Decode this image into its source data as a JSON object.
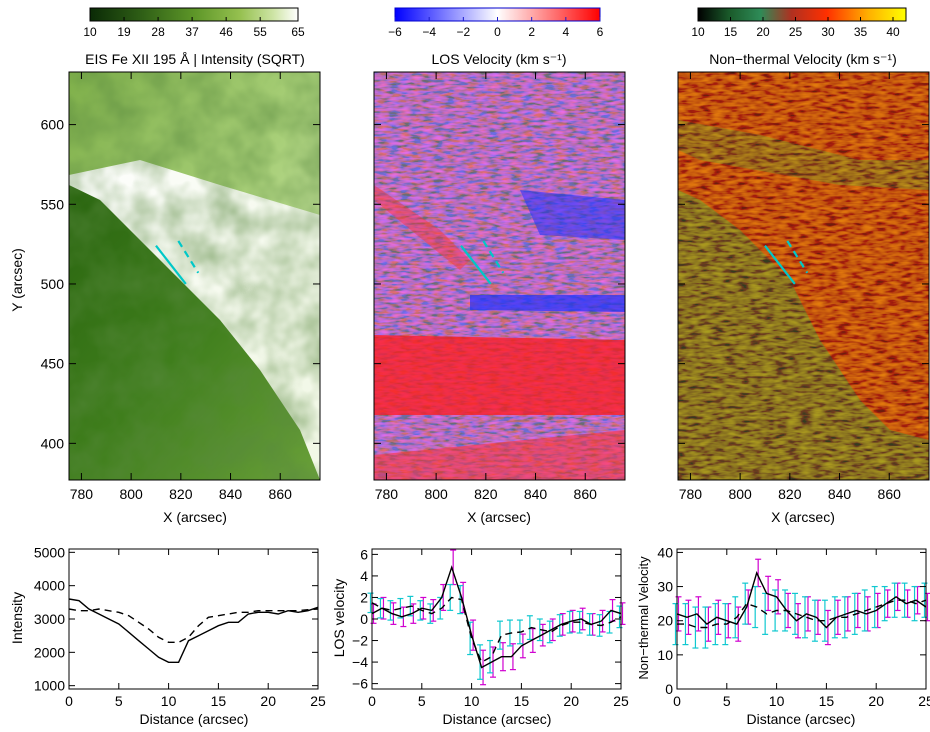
{
  "colors": {
    "intensity_cmap": [
      "#0a2a06",
      "#2f5f16",
      "#5d9628",
      "#95c04f",
      "#cde4a4",
      "#ffffff"
    ],
    "velocity_cmap": [
      "#0000ff",
      "#ffffff",
      "#ff0000"
    ],
    "nonthermal_cmap": [
      "#000000",
      "#1a5a2a",
      "#2e8b57",
      "#b03020",
      "#ff3000",
      "#ffb000",
      "#ffff00"
    ],
    "cut_line": "#00c8c8",
    "error_magenta": "#d000d0",
    "error_cyan": "#10c8d0"
  },
  "chart_data": [
    {
      "type": "heatmap",
      "title": "EIS Fe XII 195 Å  |  Intensity (SQRT)",
      "xlabel": "X (arcsec)",
      "ylabel": "Y (arcsec)",
      "xlim": [
        775,
        876
      ],
      "ylim": [
        377,
        633
      ],
      "xticks": [
        "780",
        "800",
        "820",
        "840",
        "860"
      ],
      "yticks": [
        "400",
        "450",
        "500",
        "550",
        "600"
      ],
      "colorbar": {
        "ticks": [
          "10",
          "19",
          "28",
          "37",
          "46",
          "55",
          "65"
        ],
        "range": [
          10,
          65
        ]
      },
      "slits": [
        {
          "x1": 810,
          "y1": 524,
          "x2": 822,
          "y2": 500
        },
        {
          "x1": 819,
          "y1": 527,
          "x2": 827,
          "y2": 507
        }
      ]
    },
    {
      "type": "heatmap",
      "title": "LOS Velocity (km s⁻¹)",
      "xlabel": "X (arcsec)",
      "xlim": [
        775,
        876
      ],
      "ylim": [
        377,
        633
      ],
      "xticks": [
        "780",
        "800",
        "820",
        "840",
        "860"
      ],
      "colorbar": {
        "ticks": [
          "−6",
          "−4",
          "−2",
          "0",
          "2",
          "4",
          "6"
        ],
        "range": [
          -6,
          6
        ]
      },
      "slits": [
        {
          "x1": 810,
          "y1": 524,
          "x2": 822,
          "y2": 500
        },
        {
          "x1": 819,
          "y1": 527,
          "x2": 827,
          "y2": 507
        }
      ]
    },
    {
      "type": "heatmap",
      "title": "Non−thermal Velocity (km s⁻¹)",
      "xlabel": "X (arcsec)",
      "xlim": [
        775,
        876
      ],
      "ylim": [
        377,
        633
      ],
      "xticks": [
        "780",
        "800",
        "820",
        "840",
        "860"
      ],
      "colorbar": {
        "ticks": [
          "10",
          "15",
          "20",
          "25",
          "30",
          "35",
          "40"
        ],
        "range": [
          10,
          42
        ]
      },
      "slits": [
        {
          "x1": 810,
          "y1": 524,
          "x2": 822,
          "y2": 500
        },
        {
          "x1": 819,
          "y1": 527,
          "x2": 827,
          "y2": 507
        }
      ]
    },
    {
      "type": "line",
      "xlabel": "Distance (arcsec)",
      "ylabel": "Intensity",
      "xlim": [
        0,
        25
      ],
      "ylim": [
        900,
        5100
      ],
      "xticks": [
        "0",
        "5",
        "10",
        "15",
        "20",
        "25"
      ],
      "yticks": [
        "1000",
        "2000",
        "3000",
        "4000",
        "5000"
      ],
      "series": [
        {
          "style": "solid",
          "x": [
            0,
            1,
            2,
            3,
            4,
            5,
            6,
            7,
            8,
            9,
            10,
            11,
            12,
            13,
            14,
            15,
            16,
            17,
            18,
            19,
            20,
            21,
            22,
            23,
            24,
            25
          ],
          "values": [
            3600,
            3550,
            3300,
            3150,
            3000,
            2850,
            2600,
            2350,
            2100,
            1850,
            1700,
            1700,
            2350,
            2500,
            2650,
            2800,
            2900,
            2900,
            3150,
            3200,
            3200,
            3150,
            3250,
            3200,
            3250,
            3350
          ]
        },
        {
          "style": "dashed",
          "x": [
            0,
            1,
            2,
            3,
            4,
            5,
            6,
            7,
            8,
            9,
            10,
            11,
            12,
            13,
            14,
            15,
            16,
            17,
            18,
            19,
            20,
            21,
            22,
            23,
            24,
            25
          ],
          "values": [
            3300,
            3250,
            3250,
            3300,
            3250,
            3200,
            3100,
            2900,
            2700,
            2450,
            2300,
            2300,
            2450,
            2800,
            3050,
            3100,
            3150,
            3200,
            3200,
            3250,
            3250,
            3250,
            3250,
            3250,
            3280,
            3300
          ]
        }
      ]
    },
    {
      "type": "line",
      "xlabel": "Distance (arcsec)",
      "ylabel": "LOS velocity",
      "xlim": [
        0,
        25
      ],
      "ylim": [
        -6.5,
        6.5
      ],
      "xticks": [
        "0",
        "5",
        "10",
        "15",
        "20",
        "25"
      ],
      "yticks": [
        "−6",
        "−4",
        "−2",
        "0",
        "2",
        "4",
        "6"
      ],
      "series": [
        {
          "style": "solid",
          "error_color": "magenta",
          "x": [
            0,
            1,
            2,
            3,
            4,
            5,
            6,
            7,
            8,
            9,
            10,
            11,
            12,
            13,
            14,
            15,
            16,
            17,
            18,
            19,
            20,
            21,
            22,
            23,
            24,
            25
          ],
          "values": [
            0.5,
            1.0,
            0.5,
            0.2,
            0.5,
            1.0,
            0.8,
            2.0,
            4.8,
            2.0,
            -1.5,
            -4.5,
            -4.0,
            -3.5,
            -3.5,
            -2.5,
            -2.0,
            -1.5,
            -1.0,
            -0.5,
            -0.2,
            0.0,
            -0.5,
            -0.2,
            0.8,
            0.5
          ],
          "errors": [
            0.9,
            1.0,
            1.0,
            0.9,
            0.9,
            1.0,
            1.0,
            1.2,
            1.6,
            1.4,
            1.4,
            1.6,
            1.4,
            1.3,
            1.2,
            1.1,
            1.1,
            1.0,
            1.0,
            1.0,
            1.0,
            1.0,
            1.0,
            1.0,
            1.0,
            1.0
          ]
        },
        {
          "style": "dashed",
          "error_color": "cyan",
          "x": [
            0,
            1,
            2,
            3,
            4,
            5,
            6,
            7,
            8,
            9,
            10,
            11,
            12,
            13,
            14,
            15,
            16,
            17,
            18,
            19,
            20,
            21,
            22,
            23,
            24,
            25
          ],
          "values": [
            1.5,
            1.0,
            0.8,
            1.0,
            1.2,
            0.8,
            0.5,
            1.0,
            2.0,
            1.8,
            -1.8,
            -4.0,
            -3.5,
            -1.5,
            -1.3,
            -1.2,
            -0.8,
            -1.0,
            -1.2,
            -0.6,
            -0.3,
            -0.3,
            -0.5,
            -0.6,
            -0.3,
            0.2
          ],
          "errors": [
            0.9,
            0.9,
            0.9,
            0.9,
            0.9,
            0.9,
            0.9,
            1.0,
            1.2,
            1.3,
            1.5,
            1.6,
            1.5,
            1.3,
            1.2,
            1.1,
            1.1,
            1.0,
            1.0,
            1.0,
            1.0,
            1.0,
            1.0,
            1.0,
            1.0,
            1.0
          ]
        }
      ]
    },
    {
      "type": "line",
      "xlabel": "Distance (arcsec)",
      "ylabel": "Non−thermal Velocity",
      "xlim": [
        0,
        25
      ],
      "ylim": [
        0,
        41
      ],
      "xticks": [
        "0",
        "5",
        "10",
        "15",
        "20",
        "25"
      ],
      "yticks": [
        "0",
        "10",
        "20",
        "30",
        "40"
      ],
      "series": [
        {
          "style": "solid",
          "error_color": "magenta",
          "x": [
            0,
            1,
            2,
            3,
            4,
            5,
            6,
            7,
            8,
            9,
            10,
            11,
            12,
            13,
            14,
            15,
            16,
            17,
            18,
            19,
            20,
            21,
            22,
            23,
            24,
            25
          ],
          "values": [
            22,
            21,
            22,
            19,
            21,
            20,
            19,
            24,
            34,
            28,
            27,
            23,
            20,
            22,
            21,
            18,
            21,
            22,
            23,
            22,
            23,
            25,
            27,
            25,
            26,
            24
          ],
          "errors": [
            5,
            5,
            5,
            5,
            5,
            5,
            5,
            5,
            4,
            5,
            5,
            5,
            5,
            5,
            5,
            5,
            5,
            5,
            5,
            5,
            5,
            4,
            4,
            4,
            4,
            4
          ]
        },
        {
          "style": "dashed",
          "error_color": "cyan",
          "x": [
            0,
            1,
            2,
            3,
            4,
            5,
            6,
            7,
            8,
            9,
            10,
            11,
            12,
            13,
            14,
            15,
            16,
            17,
            18,
            19,
            20,
            21,
            22,
            23,
            24,
            25
          ],
          "values": [
            19,
            19,
            18,
            18,
            19,
            19,
            21,
            25,
            24,
            22,
            23,
            23,
            22,
            21,
            20,
            20,
            21,
            21,
            22,
            23,
            24,
            25,
            26,
            26,
            25,
            26
          ],
          "errors": [
            6,
            6,
            6,
            6,
            6,
            6,
            6,
            6,
            6,
            6,
            6,
            6,
            6,
            6,
            6,
            6,
            6,
            6,
            6,
            6,
            6,
            5,
            5,
            5,
            5,
            5
          ]
        }
      ]
    }
  ]
}
